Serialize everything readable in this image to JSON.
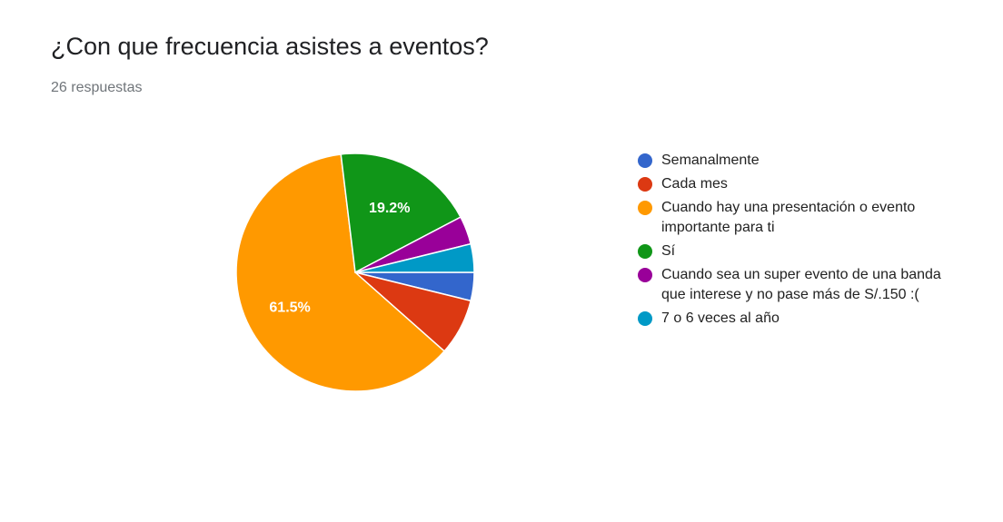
{
  "header": {
    "title": "¿Con que frecuencia asistes a eventos?",
    "response_count": "26 respuestas"
  },
  "chart_data": {
    "type": "pie",
    "title": "¿Con que frecuencia asistes a eventos?",
    "total_responses": 26,
    "categories": [
      "Semanalmente",
      "Cada mes",
      "Cuando hay una presentación o evento importante para ti",
      "Sí",
      "Cuando sea un super evento de una banda que interese y no pase más de S/.150 :(",
      "7 o 6 veces al año"
    ],
    "values": [
      1,
      2,
      16,
      5,
      1,
      1
    ],
    "percent_labels": [
      "",
      "",
      "61.5%",
      "19.2%",
      "",
      ""
    ],
    "colors": [
      "#3366cc",
      "#dc3912",
      "#ff9900",
      "#109618",
      "#990099",
      "#0099c6"
    ],
    "legend_position": "right"
  }
}
